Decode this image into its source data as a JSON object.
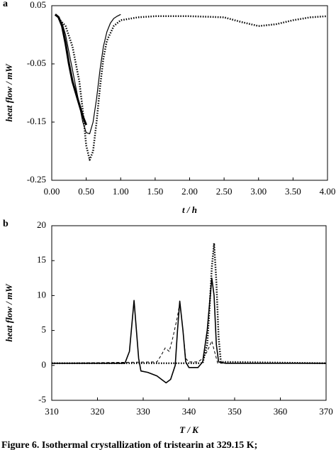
{
  "chart_data": [
    {
      "type": "line",
      "label": "a",
      "xlabel": "t / h",
      "ylabel": "heat flow / mW",
      "xlim": [
        0,
        4
      ],
      "ylim": [
        -0.25,
        0.05
      ],
      "xticks": [
        {
          "value": 0,
          "label": "0.00"
        },
        {
          "value": 0.5,
          "label": "0.50"
        },
        {
          "value": 1,
          "label": "1.00"
        },
        {
          "value": 1.5,
          "label": "1.50"
        },
        {
          "value": 2,
          "label": "2.00"
        },
        {
          "value": 2.5,
          "label": "2.50"
        },
        {
          "value": 3,
          "label": "3.00"
        },
        {
          "value": 3.5,
          "label": "3.50"
        },
        {
          "value": 4,
          "label": "4.00"
        }
      ],
      "yticks": [
        0.05,
        -0.05,
        -0.15,
        -0.25
      ],
      "series": [
        {
          "color": "#000000",
          "style": "solid",
          "x": [
            0.05,
            0.1,
            0.15,
            0.2,
            0.25,
            0.3,
            0.35,
            0.4,
            0.45,
            0.5,
            0.55,
            0.6,
            0.65,
            0.7,
            0.75,
            0.8,
            0.85,
            0.9,
            0.95,
            1.0
          ],
          "values": [
            0.033,
            0.03,
            0.02,
            0.0,
            -0.03,
            -0.06,
            -0.09,
            -0.12,
            -0.15,
            -0.168,
            -0.17,
            -0.15,
            -0.11,
            -0.06,
            -0.02,
            0.005,
            0.02,
            0.028,
            0.032,
            0.035
          ]
        },
        {
          "color": "#000000",
          "style": "bold",
          "x": [
            0.05,
            0.1,
            0.15,
            0.2,
            0.25,
            0.3,
            0.35,
            0.4,
            0.45,
            0.5
          ],
          "values": [
            0.035,
            0.03,
            0.015,
            -0.015,
            -0.05,
            -0.08,
            -0.1,
            -0.12,
            -0.14,
            -0.155
          ]
        },
        {
          "color": "#000000",
          "style": "dotted",
          "x": [
            0.1,
            0.2,
            0.3,
            0.4,
            0.45,
            0.5,
            0.55,
            0.6,
            0.65,
            0.7,
            0.75,
            0.8,
            0.9,
            1.0,
            1.25,
            1.5,
            2.0,
            2.5,
            2.75,
            3.0,
            3.25,
            3.5,
            3.75,
            4.0
          ],
          "values": [
            0.028,
            0.015,
            -0.02,
            -0.08,
            -0.13,
            -0.19,
            -0.215,
            -0.2,
            -0.15,
            -0.09,
            -0.04,
            -0.01,
            0.015,
            0.025,
            0.03,
            0.032,
            0.032,
            0.03,
            0.022,
            0.015,
            0.018,
            0.025,
            0.03,
            0.032
          ]
        }
      ]
    },
    {
      "type": "line",
      "label": "b",
      "xlabel": "T / K",
      "ylabel": "heat flow / mW",
      "xlim": [
        310,
        370
      ],
      "ylim": [
        -5,
        20
      ],
      "xticks": [
        310,
        320,
        330,
        340,
        350,
        360,
        370
      ],
      "yticks": [
        -5,
        0,
        5,
        10,
        15,
        20
      ],
      "series": [
        {
          "color": "#000000",
          "style": "marked",
          "x": [
            310,
            326,
            327,
            328,
            329,
            329.5,
            331,
            333,
            334,
            335,
            336,
            337,
            337.5,
            338,
            338.7,
            339.3,
            340,
            342,
            343,
            344,
            345,
            345.5,
            346,
            346.5,
            348,
            370
          ],
          "values": [
            0.3,
            0.3,
            2,
            9.3,
            1,
            -0.8,
            -1,
            -1.5,
            -2,
            -2.5,
            -2,
            0,
            5,
            9.2,
            5,
            0.5,
            -0.3,
            -0.3,
            0.5,
            5,
            12.5,
            10,
            3,
            0.5,
            0.3,
            0.3
          ]
        },
        {
          "color": "#000000",
          "style": "dashed",
          "x": [
            310,
            333,
            334,
            334.8,
            335.7,
            336.5,
            337.5,
            338,
            338.7,
            339.3,
            340,
            342,
            343,
            344,
            345,
            345.6,
            346.3,
            370
          ],
          "values": [
            0.3,
            0.5,
            1.5,
            2.5,
            2,
            4,
            7,
            9,
            5,
            1,
            0.5,
            0.5,
            1,
            2,
            3.5,
            2,
            0.3,
            0.3
          ]
        },
        {
          "color": "#000000",
          "style": "dotted",
          "x": [
            310,
            343,
            344,
            344.5,
            345,
            345.5,
            346,
            346.5,
            347,
            370
          ],
          "values": [
            0.3,
            0.3,
            3,
            8,
            14,
            17.5,
            12,
            4,
            0.5,
            0.3
          ]
        }
      ]
    }
  ],
  "caption": "Figure 6.  Isothermal crystallization of tristearin at 329.15 K;"
}
